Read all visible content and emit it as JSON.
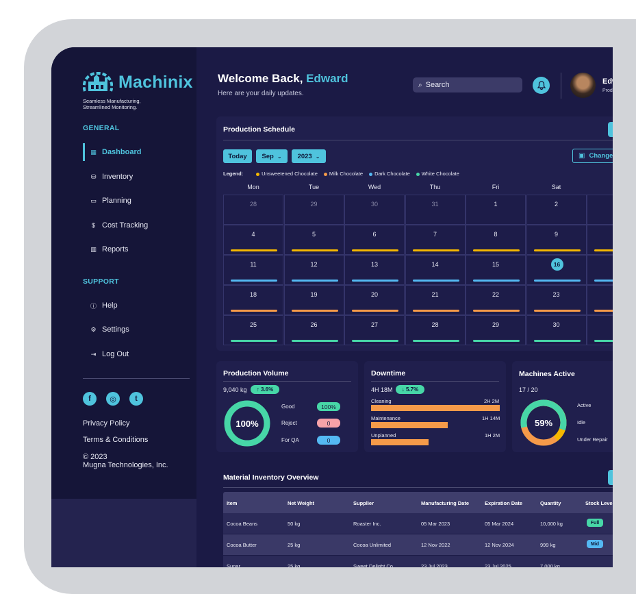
{
  "brand": {
    "name": "Machinix",
    "tagline_line1": "Seamless Manufacturing,",
    "tagline_line2": "Streamlined Monitoring."
  },
  "sidebar": {
    "general_heading": "GENERAL",
    "items": [
      {
        "label": "Dashboard",
        "icon": "grid-icon"
      },
      {
        "label": "Inventory",
        "icon": "boxes-icon"
      },
      {
        "label": "Planning",
        "icon": "calendar-icon"
      },
      {
        "label": "Cost Tracking",
        "icon": "dollar-icon"
      },
      {
        "label": "Reports",
        "icon": "bar-chart-icon"
      }
    ],
    "support_heading": "SUPPORT",
    "support_items": [
      {
        "label": "Help",
        "icon": "info-icon"
      },
      {
        "label": "Settings",
        "icon": "gear-icon"
      },
      {
        "label": "Log Out",
        "icon": "logout-icon"
      }
    ],
    "footer": {
      "privacy": "Privacy Policy",
      "terms": "Terms & Conditions",
      "copyright_year": "© 2023",
      "company": "Mugna Technologies, Inc."
    }
  },
  "header": {
    "welcome_prefix": "Welcome Back,",
    "user_first": "Edward",
    "subtitle": "Here are your daily updates.",
    "search_placeholder": "Search",
    "user_name_partial": "Edw",
    "user_role_partial": "Prod"
  },
  "schedule": {
    "title": "Production Schedule",
    "today_button": "Today",
    "month": "Sep",
    "year": "2023",
    "change_button": "Change",
    "legend_label": "Legend:",
    "legend": [
      {
        "label": "Unsweetened Chocolate",
        "color": "#f5b800"
      },
      {
        "label": "Milk Chocolate",
        "color": "#f59a49"
      },
      {
        "label": "Dark Chocolate",
        "color": "#54b8f2"
      },
      {
        "label": "White Chocolate",
        "color": "#47d6a7"
      }
    ],
    "days": [
      "Mon",
      "Tue",
      "Wed",
      "Thu",
      "Fri",
      "Sat",
      "S"
    ],
    "weeks": [
      [
        "28",
        "29",
        "30",
        "31",
        "1",
        "2"
      ],
      [
        "4",
        "5",
        "6",
        "7",
        "8",
        "9"
      ],
      [
        "11",
        "12",
        "13",
        "14",
        "15",
        "16"
      ],
      [
        "18",
        "19",
        "20",
        "21",
        "22",
        "23"
      ],
      [
        "25",
        "26",
        "27",
        "28",
        "29",
        "30"
      ]
    ]
  },
  "volume": {
    "title": "Production Volume",
    "total": "9,040 kg",
    "change": "↑ 3.6%",
    "donut_label": "100%",
    "good_label": "Good",
    "good_value": "100%",
    "reject_label": "Reject",
    "reject_value": "0",
    "qa_label": "For QA",
    "qa_value": "0"
  },
  "downtime": {
    "title": "Downtime",
    "total": "4H 18M",
    "change": "↓ 5.7%",
    "rows": [
      {
        "label": "Cleaning",
        "value": "2H 2M"
      },
      {
        "label": "Maintenance",
        "value": "1H 14M"
      },
      {
        "label": "Unplanned",
        "value": "1H 2M"
      }
    ]
  },
  "machines": {
    "title": "Machines Active",
    "count": "17 / 20",
    "donut_label": "59%",
    "legend": [
      "Active",
      "Idle",
      "Under Repair"
    ]
  },
  "inventory": {
    "title": "Material Inventory Overview",
    "columns": [
      "Item",
      "Net Weight",
      "Supplier",
      "Manufacturing Date",
      "Expiration Date",
      "Quantity",
      "Stock Leve"
    ],
    "rows": [
      {
        "item": "Cocoa Beans",
        "weight": "50 kg",
        "supplier": "Roaster Inc.",
        "mfg": "05 Mar 2023",
        "exp": "05 Mar 2024",
        "qty": "10,000 kg",
        "stock": "Full"
      },
      {
        "item": "Cocoa Butter",
        "weight": "25 kg",
        "supplier": "Cocoa Unlimited",
        "mfg": "12 Nov 2022",
        "exp": "12 Nov 2024",
        "qty": "999 kg",
        "stock": "Mid"
      },
      {
        "item": "Sugar",
        "weight": "25 kg",
        "supplier": "Sweet Delight Co.",
        "mfg": "23 Jul 2023",
        "exp": "23 Jul 2025",
        "qty": "7,000 kg",
        "stock": ""
      }
    ]
  },
  "colors": {
    "accent": "#4fc3dd",
    "bg": "#1b1a45",
    "sidebar": "#151538"
  }
}
